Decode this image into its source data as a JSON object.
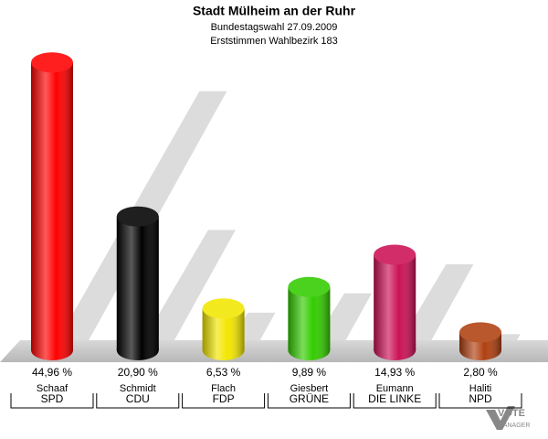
{
  "chart_data": {
    "type": "cylinder-bar",
    "title": "Stadt Mülheim an der Ruhr",
    "subtitle": [
      "Bundestagswahl 27.09.2009",
      "Erststimmen Wahlbezirk 183"
    ],
    "candidates": [
      "Schaaf",
      "Schmidt",
      "Flach",
      "Giesbert",
      "Eumann",
      "Haliti"
    ],
    "categories": [
      "SPD",
      "CDU",
      "FDP",
      "GRÜNE",
      "DIE LINKE",
      "NPD"
    ],
    "values": [
      44.96,
      20.9,
      6.53,
      9.89,
      14.93,
      2.8
    ],
    "value_labels": [
      "44,96 %",
      "20,90 %",
      "6,53 %",
      "9,89 %",
      "14,93 %",
      "2,80 %"
    ],
    "colors": [
      "#ff0000",
      "#000000",
      "#f2e600",
      "#33cc00",
      "#cc1155",
      "#b04010"
    ],
    "logo_text": "VOTE",
    "logo_subtext": "MANAGER"
  }
}
